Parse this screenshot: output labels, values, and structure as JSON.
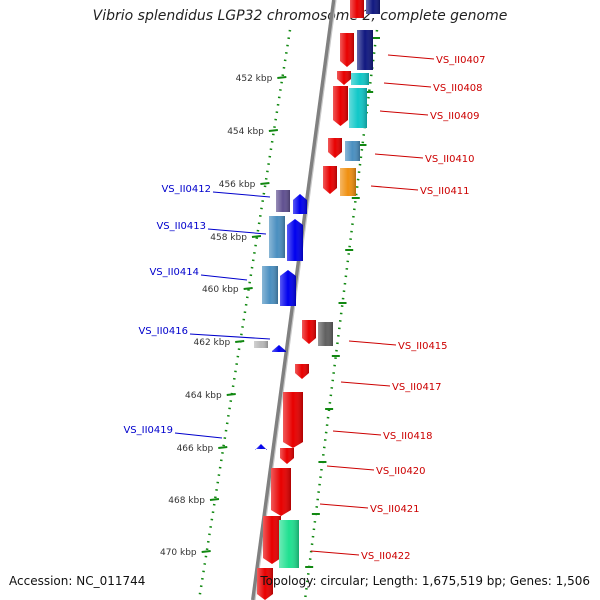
{
  "title": "Vibrio splendidus LGP32 chromosome 2, complete genome",
  "footer": {
    "accession": "Accession: NC_011744",
    "summary": "Topology: circular; Length: 1,675,519 bp; Genes: 1,506"
  },
  "ticks": [
    "452 kbp",
    "454 kbp",
    "456 kbp",
    "458 kbp",
    "460 kbp",
    "462 kbp",
    "464 kbp",
    "466 kbp",
    "468 kbp",
    "470 kbp"
  ],
  "genes_forward": [
    {
      "label": "VS_II0407",
      "colors": [
        "#e80000",
        "#101880"
      ]
    },
    {
      "label": "VS_II0408",
      "colors": [
        "#e80000",
        "#10c8c8"
      ]
    },
    {
      "label": "VS_II0409",
      "colors": [
        "#e80000",
        "#10c8c8"
      ]
    },
    {
      "label": "VS_II0410",
      "colors": [
        "#e80000",
        "#4a8fc0"
      ]
    },
    {
      "label": "VS_II0411",
      "colors": [
        "#e80000",
        "#f09010"
      ]
    },
    {
      "label": "VS_II0415",
      "colors": [
        "#e80000",
        "#606060"
      ]
    },
    {
      "label": "VS_II0417",
      "colors": [
        "#e80000"
      ]
    },
    {
      "label": "VS_II0418",
      "colors": [
        "#e80000"
      ]
    },
    {
      "label": "VS_II0420",
      "colors": [
        "#e80000"
      ]
    },
    {
      "label": "VS_II0421",
      "colors": [
        "#e80000"
      ]
    },
    {
      "label": "VS_II0422",
      "colors": [
        "#e80000",
        "#20e090"
      ]
    }
  ],
  "genes_reverse": [
    {
      "label": "VS_II0412",
      "colors": [
        "#605090",
        "#0000ee"
      ]
    },
    {
      "label": "VS_II0413",
      "colors": [
        "#4a8fc0",
        "#0000ee"
      ]
    },
    {
      "label": "VS_II0414",
      "colors": [
        "#4a8fc0",
        "#0000ee"
      ]
    },
    {
      "label": "VS_II0416",
      "colors": [
        "#b8b8b8",
        "#0000ee"
      ]
    },
    {
      "label": "VS_II0419",
      "colors": [
        "#0000ee"
      ]
    }
  ],
  "colors": {
    "forward_label": "#cc0000",
    "reverse_label": "#0000cc",
    "backbone": "#808080",
    "dots": "#118811"
  }
}
